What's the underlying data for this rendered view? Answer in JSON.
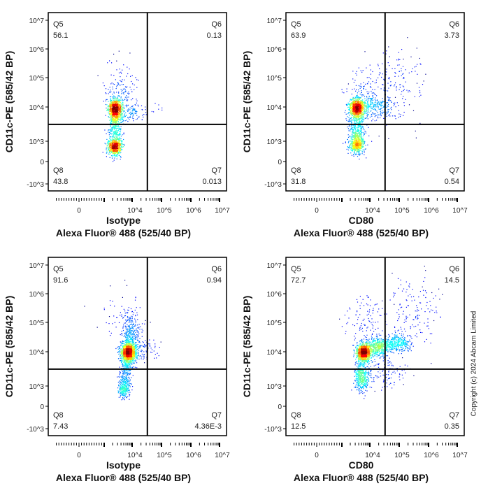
{
  "copyright": "Copyright (c) 2024 Abcam Limited",
  "chart_data": [
    {
      "type": "scatter",
      "xlabel": [
        "Isotype",
        "Alexa Fluor® 488  (525/40 BP)"
      ],
      "ylabel": "CD11c-PE (585/42 BP)",
      "x_ticks": [
        {
          "v": 0,
          "label": "0"
        },
        {
          "v": 10000,
          "label": "10^4"
        },
        {
          "v": 100000,
          "label": "10^5"
        },
        {
          "v": 1000000,
          "label": "10^6"
        },
        {
          "v": 10000000,
          "label": "10^7"
        }
      ],
      "y_ticks": [
        {
          "v": 10000000,
          "label": "10^7"
        },
        {
          "v": 1000000,
          "label": "10^6"
        },
        {
          "v": 100000,
          "label": "10^5"
        },
        {
          "v": 10000,
          "label": "10^4"
        },
        {
          "v": 1000,
          "label": "10^3"
        },
        {
          "v": 0,
          "label": "0"
        },
        {
          "v": -1000,
          "label": "-10^3"
        }
      ],
      "gate": {
        "x": 33000,
        "y": 3100
      },
      "quadrants": [
        {
          "name": "Q5",
          "value": "56.1",
          "pos": "top-left"
        },
        {
          "name": "Q6",
          "value": "0.13",
          "pos": "top-right"
        },
        {
          "name": "Q7",
          "value": "0.013",
          "pos": "bottom-right"
        },
        {
          "name": "Q8",
          "value": "43.8",
          "pos": "bottom-left"
        }
      ],
      "populations": [
        {
          "x": 2400,
          "y": 9000,
          "sx": 0.12,
          "sy": 0.18,
          "n": 850
        },
        {
          "x": 2300,
          "y": 750,
          "sx": 0.13,
          "sy": 0.22,
          "n": 650
        },
        {
          "x": 2500,
          "y": 2800,
          "sx": 0.12,
          "sy": 0.3,
          "n": 300
        },
        {
          "x": 4000,
          "y": 40000,
          "sx": 0.3,
          "sy": 0.45,
          "n": 130
        },
        {
          "x": 8000,
          "y": 7000,
          "sx": 0.3,
          "sy": 0.15,
          "n": 110
        },
        {
          "x": 60000,
          "y": 9000,
          "sx": 0.2,
          "sy": 0.1,
          "n": 8
        }
      ],
      "seed": 11
    },
    {
      "type": "scatter",
      "xlabel": [
        "CD80",
        "Alexa Fluor® 488  (525/40 BP)"
      ],
      "ylabel": "CD11c-PE (585/42 BP)",
      "x_ticks": [
        {
          "v": 0,
          "label": "0"
        },
        {
          "v": 10000,
          "label": "10^4"
        },
        {
          "v": 100000,
          "label": "10^5"
        },
        {
          "v": 1000000,
          "label": "10^6"
        },
        {
          "v": 10000000,
          "label": "10^7"
        }
      ],
      "y_ticks": [
        {
          "v": 10000000,
          "label": "10^7"
        },
        {
          "v": 1000000,
          "label": "10^6"
        },
        {
          "v": 100000,
          "label": "10^5"
        },
        {
          "v": 10000,
          "label": "10^4"
        },
        {
          "v": 1000,
          "label": "10^3"
        },
        {
          "v": 0,
          "label": "0"
        },
        {
          "v": -1000,
          "label": "-10^3"
        }
      ],
      "gate": {
        "x": 33000,
        "y": 3100
      },
      "quadrants": [
        {
          "name": "Q5",
          "value": "63.9",
          "pos": "top-left"
        },
        {
          "name": "Q6",
          "value": "3.73",
          "pos": "top-right"
        },
        {
          "name": "Q7",
          "value": "0.54",
          "pos": "bottom-right"
        },
        {
          "name": "Q8",
          "value": "31.8",
          "pos": "bottom-left"
        }
      ],
      "populations": [
        {
          "x": 3300,
          "y": 9500,
          "sx": 0.14,
          "sy": 0.16,
          "n": 850
        },
        {
          "x": 3300,
          "y": 900,
          "sx": 0.14,
          "sy": 0.25,
          "n": 550
        },
        {
          "x": 3500,
          "y": 3000,
          "sx": 0.15,
          "sy": 0.3,
          "n": 250
        },
        {
          "x": 15000,
          "y": 11000,
          "sx": 0.35,
          "sy": 0.2,
          "n": 280
        },
        {
          "x": 60000,
          "y": 60000,
          "sx": 0.5,
          "sy": 0.6,
          "n": 160
        },
        {
          "x": 5000,
          "y": 50000,
          "sx": 0.3,
          "sy": 0.4,
          "n": 90
        }
      ],
      "seed": 23
    },
    {
      "type": "scatter",
      "xlabel": [
        "Isotype",
        "Alexa Fluor® 488  (525/40 BP)"
      ],
      "ylabel": "CD11c-PE (585/42 BP)",
      "x_ticks": [
        {
          "v": 0,
          "label": "0"
        },
        {
          "v": 10000,
          "label": "10^4"
        },
        {
          "v": 100000,
          "label": "10^5"
        },
        {
          "v": 1000000,
          "label": "10^6"
        },
        {
          "v": 10000000,
          "label": "10^7"
        }
      ],
      "y_ticks": [
        {
          "v": 10000000,
          "label": "10^7"
        },
        {
          "v": 1000000,
          "label": "10^6"
        },
        {
          "v": 100000,
          "label": "10^5"
        },
        {
          "v": 10000,
          "label": "10^4"
        },
        {
          "v": 1000,
          "label": "10^3"
        },
        {
          "v": 0,
          "label": "0"
        },
        {
          "v": -1000,
          "label": "-10^3"
        }
      ],
      "gate": {
        "x": 33000,
        "y": 3100
      },
      "quadrants": [
        {
          "name": "Q5",
          "value": "91.6",
          "pos": "top-left"
        },
        {
          "name": "Q6",
          "value": "0.94",
          "pos": "top-right"
        },
        {
          "name": "Q7",
          "value": "4.36E-3",
          "pos": "bottom-right"
        },
        {
          "name": "Q8",
          "value": "7.43",
          "pos": "bottom-left"
        }
      ],
      "populations": [
        {
          "x": 7000,
          "y": 10000,
          "sx": 0.13,
          "sy": 0.17,
          "n": 1300
        },
        {
          "x": 9000,
          "y": 40000,
          "sx": 0.17,
          "sy": 0.4,
          "n": 350
        },
        {
          "x": 5000,
          "y": 900,
          "sx": 0.1,
          "sy": 0.25,
          "n": 300
        },
        {
          "x": 6000,
          "y": 3000,
          "sx": 0.1,
          "sy": 0.25,
          "n": 150
        },
        {
          "x": 20000,
          "y": 12000,
          "sx": 0.3,
          "sy": 0.2,
          "n": 100
        },
        {
          "x": 4000,
          "y": 200000,
          "sx": 0.5,
          "sy": 0.5,
          "n": 40
        }
      ],
      "seed": 37
    },
    {
      "type": "scatter",
      "xlabel": [
        "CD80",
        "Alexa Fluor® 488  (525/40 BP)"
      ],
      "ylabel": "CD11c-PE (585/42 BP)",
      "x_ticks": [
        {
          "v": 0,
          "label": "0"
        },
        {
          "v": 10000,
          "label": "10^4"
        },
        {
          "v": 100000,
          "label": "10^5"
        },
        {
          "v": 1000000,
          "label": "10^6"
        },
        {
          "v": 10000000,
          "label": "10^7"
        }
      ],
      "y_ticks": [
        {
          "v": 10000000,
          "label": "10^7"
        },
        {
          "v": 1000000,
          "label": "10^6"
        },
        {
          "v": 100000,
          "label": "10^5"
        },
        {
          "v": 10000,
          "label": "10^4"
        },
        {
          "v": 1000,
          "label": "10^3"
        },
        {
          "v": 0,
          "label": "0"
        },
        {
          "v": -1000,
          "label": "-10^3"
        }
      ],
      "gate": {
        "x": 33000,
        "y": 3100
      },
      "quadrants": [
        {
          "name": "Q5",
          "value": "72.7",
          "pos": "top-left"
        },
        {
          "name": "Q6",
          "value": "14.5",
          "pos": "top-right"
        },
        {
          "name": "Q7",
          "value": "0.35",
          "pos": "bottom-right"
        },
        {
          "name": "Q8",
          "value": "12.5",
          "pos": "bottom-left"
        }
      ],
      "populations": [
        {
          "x": 6000,
          "y": 10000,
          "sx": 0.13,
          "sy": 0.15,
          "n": 1000
        },
        {
          "x": 20000,
          "y": 15000,
          "sx": 0.2,
          "sy": 0.15,
          "n": 500
        },
        {
          "x": 90000,
          "y": 20000,
          "sx": 0.22,
          "sy": 0.15,
          "n": 300
        },
        {
          "x": 5000,
          "y": 1800,
          "sx": 0.12,
          "sy": 0.22,
          "n": 450
        },
        {
          "x": 30000,
          "y": 2500,
          "sx": 0.35,
          "sy": 0.3,
          "n": 120
        },
        {
          "x": 300000,
          "y": 300000,
          "sx": 0.5,
          "sy": 0.6,
          "n": 150
        },
        {
          "x": 8000,
          "y": 100000,
          "sx": 0.35,
          "sy": 0.5,
          "n": 120
        }
      ],
      "seed": 41
    }
  ]
}
